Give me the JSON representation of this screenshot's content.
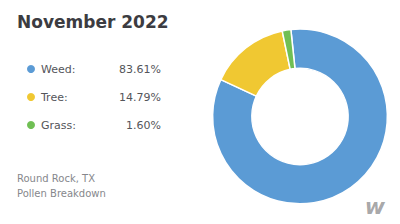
{
  "chart_data": {
    "type": "pie",
    "title": "November 2022",
    "subtitle": "Round Rock, TX\nPollen Breakdown",
    "categories": [
      "Weed:",
      "Tree:",
      "Grass:"
    ],
    "values": [
      83.61,
      14.79,
      1.6
    ],
    "value_labels": [
      "83.61%",
      "14.79%",
      "1.60%"
    ],
    "colors": [
      "#5B9BD5",
      "#F0C832",
      "#70BF54"
    ],
    "legend": "left",
    "annotations": [
      "w"
    ]
  }
}
